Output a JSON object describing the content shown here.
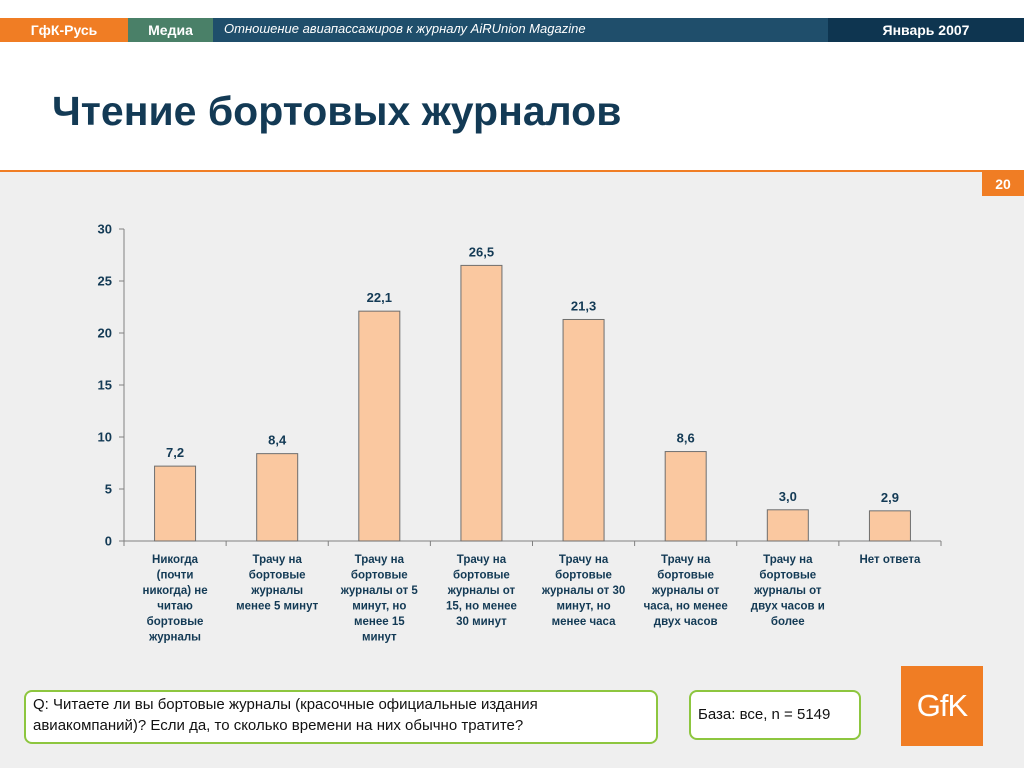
{
  "header": {
    "brand": "ГфК-Русь",
    "section": "Медиа",
    "subtitle": "Отношение авиапассажиров к журналу AiRUnion Magazine",
    "date": "Январь 2007"
  },
  "page": {
    "title": "Чтение бортовых журналов",
    "number": "20"
  },
  "question": "Q: Читаете ли вы бортовые журналы (красочные официальные издания авиакомпаний)? Если да, то сколько времени на них обычно тратите?",
  "base": "База: все, n = 5149",
  "logo": "GfK",
  "colors": {
    "brand_orange": "#f07d24",
    "navy": "#1f4e6b",
    "green_tab": "#4a8068",
    "bar_fill": "#fac8a0",
    "box_border": "#8dc63f"
  },
  "chart_data": {
    "type": "bar",
    "title": "",
    "xlabel": "",
    "ylabel": "",
    "ylim": [
      0,
      30
    ],
    "yticks": [
      0,
      5,
      10,
      15,
      20,
      25,
      30
    ],
    "grid": false,
    "categories": [
      [
        "Никогда",
        "(почти",
        "никогда) не",
        "читаю",
        "бортовые",
        "журналы"
      ],
      [
        "Трачу на",
        "бортовые",
        "журналы",
        "менее 5 минут"
      ],
      [
        "Трачу на",
        "бортовые",
        "журналы от 5",
        "минут, но",
        "менее 15",
        "минут"
      ],
      [
        "Трачу на",
        "бортовые",
        "журналы от",
        "15, но менее",
        "30 минут"
      ],
      [
        "Трачу на",
        "бортовые",
        "журналы от 30",
        "минут, но",
        "менее часа"
      ],
      [
        "Трачу на",
        "бортовые",
        "журналы от",
        "часа, но менее",
        "двух часов"
      ],
      [
        "Трачу на",
        "бортовые",
        "журналы от",
        "двух часов и",
        "более"
      ],
      [
        "Нет ответа"
      ]
    ],
    "values": [
      7.2,
      8.4,
      22.1,
      26.5,
      21.3,
      8.6,
      3.0,
      2.9
    ],
    "value_labels": [
      "7,2",
      "8,4",
      "22,1",
      "26,5",
      "21,3",
      "8,6",
      "3,0",
      "2,9"
    ]
  }
}
